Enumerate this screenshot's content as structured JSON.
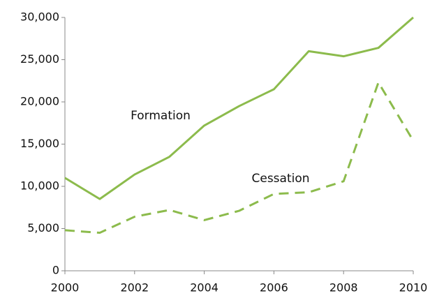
{
  "chart_data": {
    "type": "line",
    "x": [
      2000,
      2001,
      2002,
      2003,
      2004,
      2005,
      2006,
      2007,
      2008,
      2009,
      2010
    ],
    "series": [
      {
        "name": "Formation",
        "color": "#8cbb4c",
        "dashed": false,
        "values": [
          11000,
          8500,
          11400,
          13500,
          17200,
          19500,
          21500,
          26000,
          25400,
          26400,
          30000
        ]
      },
      {
        "name": "Cessation",
        "color": "#8cbb4c",
        "dashed": true,
        "values": [
          4800,
          4500,
          6400,
          7200,
          6000,
          7100,
          9100,
          9300,
          10600,
          22300,
          15400
        ]
      }
    ],
    "xlim": [
      2000,
      2010
    ],
    "xticks": [
      2000,
      2002,
      2004,
      2006,
      2008,
      2010
    ],
    "ylim": [
      0,
      30000
    ],
    "yticks": [
      0,
      {
        "value": 5000,
        "label": "5,000"
      },
      {
        "value": 10000,
        "label": "10,000"
      },
      {
        "value": 15000,
        "label": "15,000"
      },
      {
        "value": 20000,
        "label": "20,000"
      },
      {
        "value": 25000,
        "label": "25,000"
      },
      {
        "value": 30000,
        "label": "30,000"
      }
    ],
    "grid": false
  }
}
